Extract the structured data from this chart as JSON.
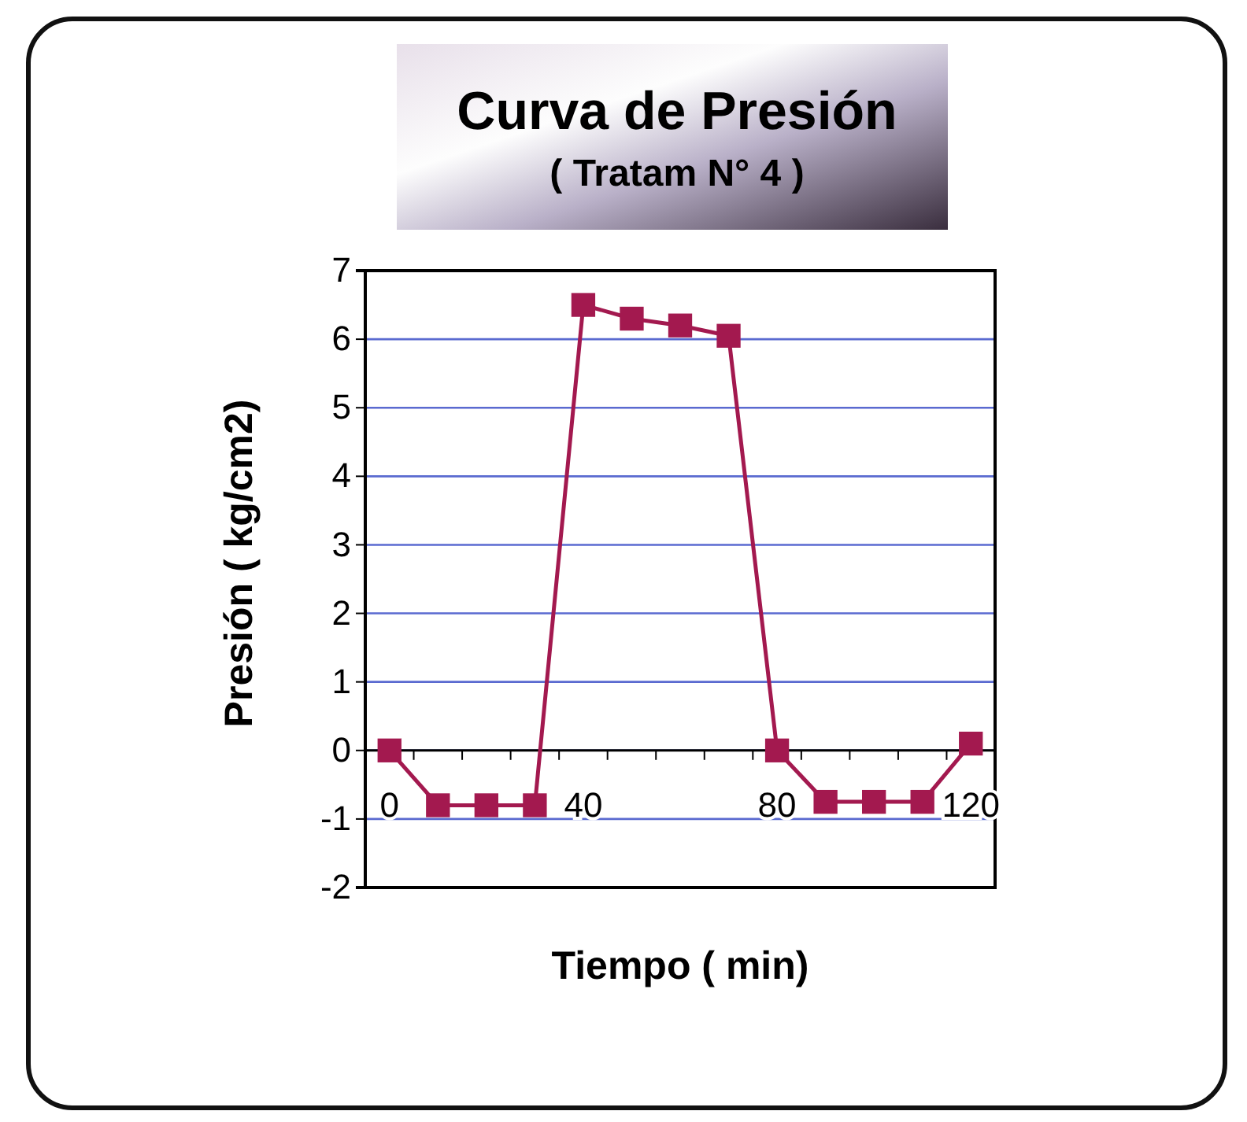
{
  "chart_data": {
    "type": "line",
    "title": "Curva de Presión",
    "subtitle": "( Tratam N° 4 )",
    "xlabel": "Tiempo ( min)",
    "ylabel": "Presión ( kg/cm2)",
    "categories": [
      "0",
      null,
      null,
      null,
      "40",
      null,
      null,
      null,
      "80",
      null,
      null,
      null,
      "120"
    ],
    "series": [
      {
        "color": "#a3194f",
        "values": [
          0,
          -0.8,
          -0.8,
          -0.8,
          6.5,
          6.3,
          6.2,
          6.05,
          0,
          -0.75,
          -0.75,
          -0.75,
          0.1
        ]
      }
    ],
    "ylim": [
      -2,
      7
    ],
    "yticks": [
      -2,
      -1,
      0,
      1,
      2,
      3,
      4,
      5,
      6,
      7
    ],
    "grid": "y",
    "marker": "square",
    "line_style": "solid"
  }
}
